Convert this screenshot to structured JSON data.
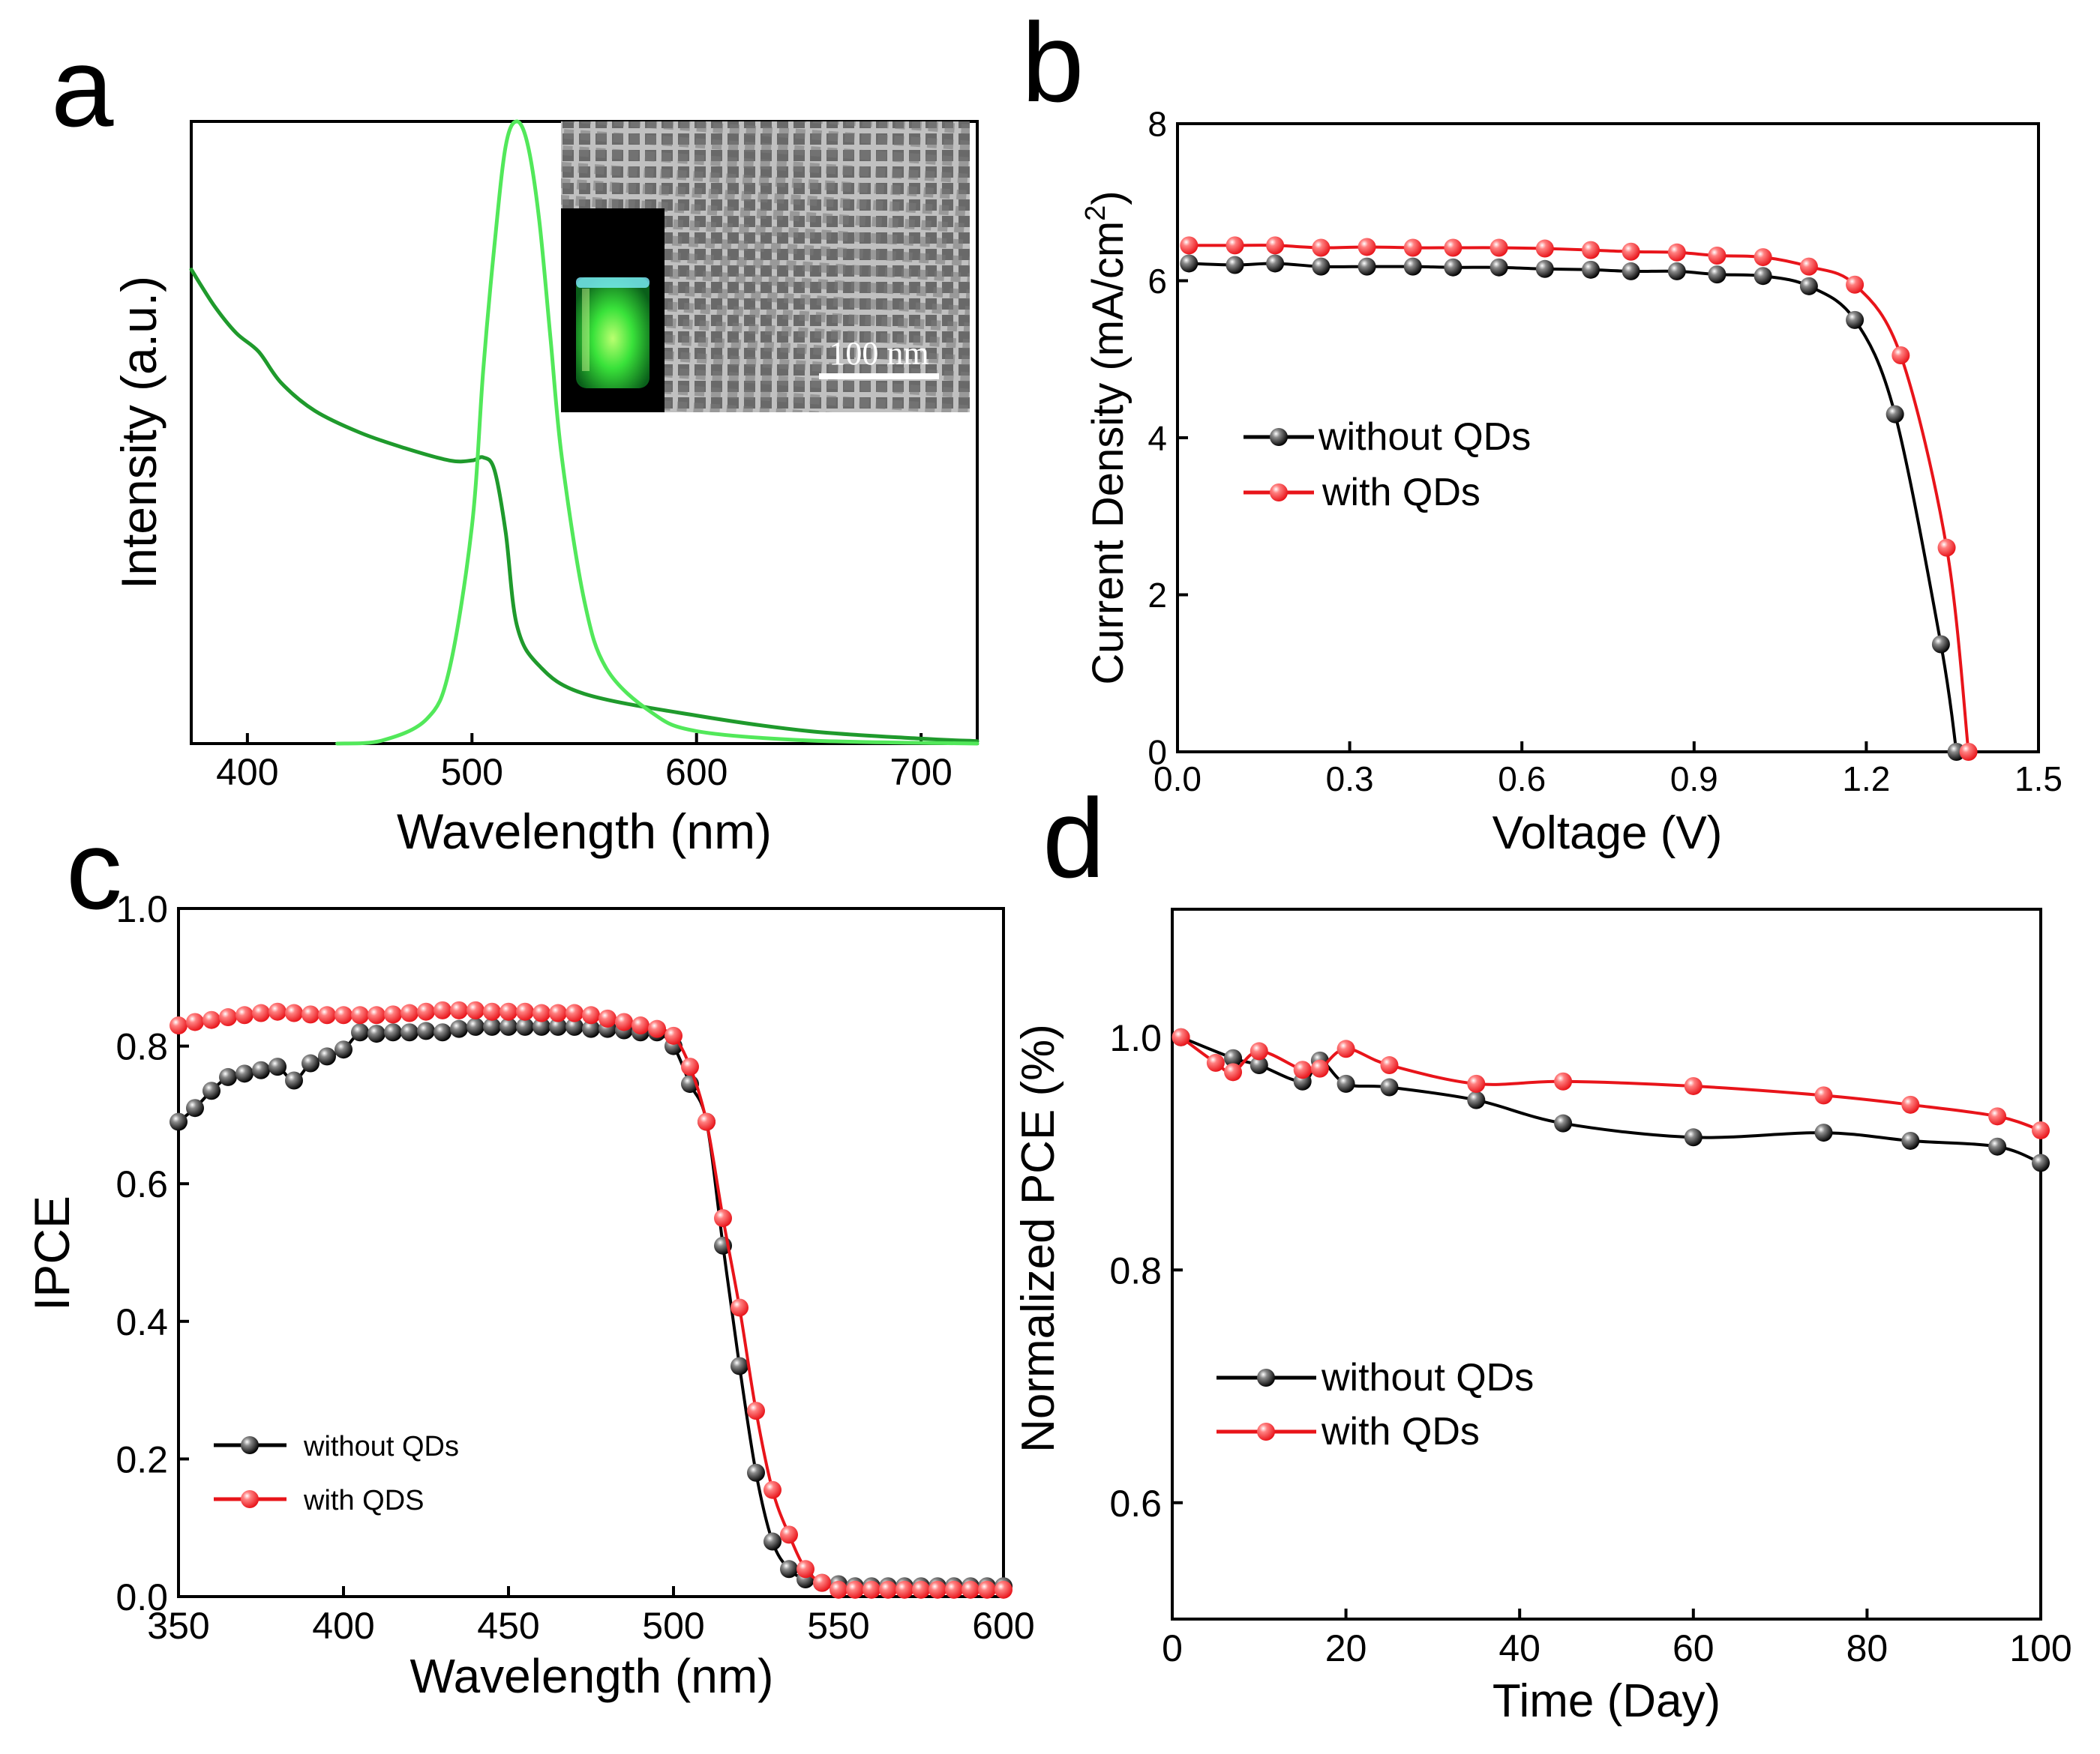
{
  "panel_letters": [
    "a",
    "b",
    "c",
    "d"
  ],
  "colors": {
    "black_series": "#000000",
    "red_series": "#e8141a",
    "absorption": "#1f9a2c",
    "emission": "#52e85a",
    "axis": "#000000"
  },
  "chart_data": [
    {
      "panel": "a",
      "type": "line",
      "xlabel": "Wavelength (nm)",
      "ylabel": "Intensity (a.u.)",
      "xlim": [
        375,
        725
      ],
      "ylim": [
        0,
        1
      ],
      "xticks": [
        400,
        500,
        600,
        700
      ],
      "y_tick_labels": false,
      "series": [
        {
          "key": "absorption",
          "color": "#1f9a2c",
          "x": [
            375,
            385,
            395,
            405,
            415,
            430,
            450,
            470,
            490,
            500,
            505,
            510,
            515,
            520,
            530,
            550,
            600,
            650,
            700,
            725
          ],
          "y": [
            0.762,
            0.705,
            0.66,
            0.63,
            0.58,
            0.535,
            0.5,
            0.475,
            0.455,
            0.455,
            0.46,
            0.44,
            0.34,
            0.19,
            0.125,
            0.08,
            0.045,
            0.02,
            0.008,
            0.004
          ]
        },
        {
          "key": "emission",
          "color": "#52e85a",
          "x": [
            440,
            460,
            480,
            490,
            500,
            505,
            510,
            515,
            520,
            525,
            530,
            535,
            540,
            550,
            560,
            580,
            600,
            650,
            725
          ],
          "y": [
            0.0,
            0.005,
            0.04,
            0.12,
            0.35,
            0.6,
            0.8,
            0.96,
            1.0,
            0.96,
            0.84,
            0.65,
            0.46,
            0.23,
            0.12,
            0.05,
            0.02,
            0.005,
            0.0
          ]
        }
      ],
      "inset": {
        "scale_bar_label": "100 nm",
        "description_elements": [
          "tem-micrograph",
          "green-glowing-vial-photo"
        ]
      }
    },
    {
      "panel": "b",
      "type": "line",
      "xlabel": "Voltage (V)",
      "ylabel": "Current Density (mA/cm",
      "ylabel_superscript": "2",
      "ylabel_close": ")",
      "xlim": [
        0,
        1.5
      ],
      "ylim": [
        0,
        8
      ],
      "xticks": [
        0.0,
        0.3,
        0.6,
        0.9,
        1.2,
        1.5
      ],
      "yticks": [
        0,
        2,
        4,
        6,
        8
      ],
      "legend": [
        "without QDs",
        "with QDs"
      ],
      "series": [
        {
          "name": "without QDs",
          "color": "#000000",
          "x": [
            0.02,
            0.1,
            0.17,
            0.25,
            0.33,
            0.41,
            0.48,
            0.56,
            0.64,
            0.72,
            0.79,
            0.87,
            0.94,
            1.02,
            1.1,
            1.18,
            1.25,
            1.33,
            1.357
          ],
          "y": [
            6.22,
            6.2,
            6.22,
            6.18,
            6.18,
            6.18,
            6.17,
            6.17,
            6.15,
            6.14,
            6.12,
            6.12,
            6.08,
            6.06,
            5.93,
            5.5,
            4.3,
            1.37,
            0.0
          ]
        },
        {
          "name": "with QDs",
          "color": "#e8141a",
          "x": [
            0.02,
            0.1,
            0.17,
            0.25,
            0.33,
            0.41,
            0.48,
            0.56,
            0.64,
            0.72,
            0.79,
            0.87,
            0.94,
            1.02,
            1.1,
            1.18,
            1.26,
            1.34,
            1.378
          ],
          "y": [
            6.45,
            6.45,
            6.45,
            6.42,
            6.43,
            6.42,
            6.42,
            6.42,
            6.41,
            6.39,
            6.37,
            6.36,
            6.32,
            6.3,
            6.18,
            5.95,
            5.05,
            2.6,
            0.0
          ]
        }
      ]
    },
    {
      "panel": "c",
      "type": "line",
      "xlabel": "Wavelength (nm)",
      "ylabel": "IPCE",
      "xlim": [
        350,
        600
      ],
      "ylim": [
        0,
        1
      ],
      "xticks": [
        350,
        400,
        450,
        500,
        550,
        600
      ],
      "yticks": [
        0.0,
        0.2,
        0.4,
        0.6,
        0.8,
        1.0
      ],
      "legend": [
        "without QDs",
        "with QDS"
      ],
      "series": [
        {
          "name": "without QDs",
          "color": "#000000",
          "x": [
            350,
            355,
            360,
            365,
            370,
            375,
            380,
            385,
            390,
            395,
            400,
            405,
            410,
            415,
            420,
            425,
            430,
            435,
            440,
            445,
            450,
            455,
            460,
            465,
            470,
            475,
            480,
            485,
            490,
            495,
            500,
            505,
            510,
            515,
            520,
            525,
            530,
            535,
            540,
            545,
            550,
            555,
            560,
            565,
            570,
            575,
            580,
            585,
            590,
            595,
            600
          ],
          "y": [
            0.69,
            0.71,
            0.735,
            0.755,
            0.76,
            0.765,
            0.77,
            0.75,
            0.775,
            0.785,
            0.795,
            0.82,
            0.818,
            0.82,
            0.82,
            0.822,
            0.82,
            0.825,
            0.828,
            0.828,
            0.828,
            0.828,
            0.828,
            0.828,
            0.828,
            0.825,
            0.825,
            0.823,
            0.82,
            0.82,
            0.8,
            0.745,
            0.69,
            0.51,
            0.335,
            0.18,
            0.08,
            0.04,
            0.025,
            0.02,
            0.018,
            0.015,
            0.015,
            0.015,
            0.015,
            0.015,
            0.015,
            0.015,
            0.015,
            0.015,
            0.015
          ]
        },
        {
          "name": "with QDS",
          "color": "#e8141a",
          "x": [
            350,
            355,
            360,
            365,
            370,
            375,
            380,
            385,
            390,
            395,
            400,
            405,
            410,
            415,
            420,
            425,
            430,
            435,
            440,
            445,
            450,
            455,
            460,
            465,
            470,
            475,
            480,
            485,
            490,
            495,
            500,
            505,
            510,
            515,
            520,
            525,
            530,
            535,
            540,
            545,
            550,
            555,
            560,
            565,
            570,
            575,
            580,
            585,
            590,
            595,
            600
          ],
          "y": [
            0.83,
            0.835,
            0.838,
            0.842,
            0.845,
            0.848,
            0.85,
            0.848,
            0.846,
            0.845,
            0.845,
            0.845,
            0.845,
            0.846,
            0.848,
            0.85,
            0.852,
            0.852,
            0.852,
            0.85,
            0.85,
            0.85,
            0.848,
            0.848,
            0.848,
            0.845,
            0.84,
            0.835,
            0.83,
            0.825,
            0.815,
            0.77,
            0.69,
            0.55,
            0.42,
            0.27,
            0.155,
            0.09,
            0.04,
            0.02,
            0.01,
            0.01,
            0.01,
            0.01,
            0.01,
            0.01,
            0.01,
            0.01,
            0.01,
            0.01,
            0.01
          ]
        }
      ]
    },
    {
      "panel": "d",
      "type": "line",
      "xlabel": "Time (Day)",
      "ylabel": "Normalized PCE (%)",
      "xlim": [
        0,
        100
      ],
      "ylim": [
        0.5,
        1.11
      ],
      "xticks": [
        0,
        20,
        40,
        60,
        80,
        100
      ],
      "yticks": [
        0.6,
        0.8,
        1.0
      ],
      "legend": [
        "without QDs",
        "with QDs"
      ],
      "series": [
        {
          "name": "without QDs",
          "color": "#000000",
          "x": [
            1,
            7,
            10,
            15,
            17,
            20,
            25,
            35,
            45,
            60,
            75,
            85,
            95,
            100
          ],
          "y": [
            1.0,
            0.982,
            0.976,
            0.962,
            0.98,
            0.96,
            0.957,
            0.946,
            0.926,
            0.914,
            0.918,
            0.911,
            0.906,
            0.892
          ]
        },
        {
          "name": "with QDs",
          "color": "#e8141a",
          "x": [
            1,
            5,
            7,
            10,
            15,
            17,
            20,
            25,
            35,
            45,
            60,
            75,
            85,
            95,
            100
          ],
          "y": [
            1.0,
            0.978,
            0.97,
            0.988,
            0.972,
            0.973,
            0.99,
            0.976,
            0.96,
            0.962,
            0.958,
            0.95,
            0.942,
            0.932,
            0.92
          ]
        }
      ]
    }
  ]
}
